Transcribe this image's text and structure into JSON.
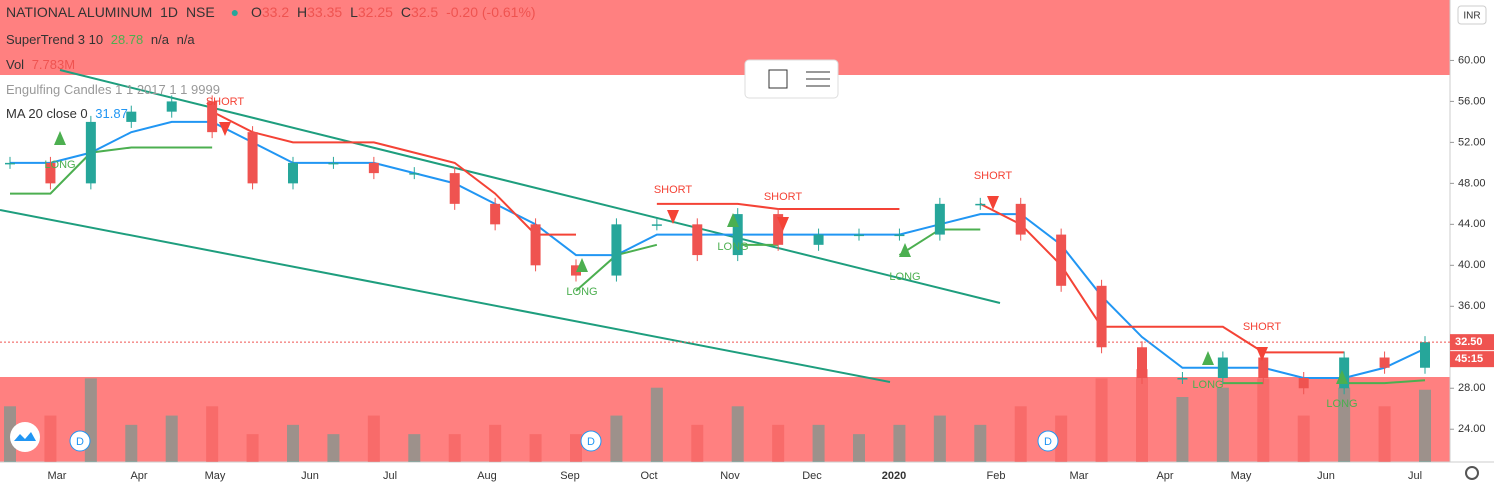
{
  "chart_data": {
    "type": "candlestick",
    "header": {
      "symbol": "NATIONAL ALUMINUM",
      "interval": "1D",
      "exchange": "NSE",
      "o_label": "O",
      "open": 33.2,
      "h_label": "H",
      "high": 33.35,
      "l_label": "L",
      "low": 32.25,
      "c_label": "C",
      "close": 32.5,
      "change": "-0.20 (-0.61%)"
    },
    "indicators": {
      "supertrend": "SuperTrend 3 10",
      "supertrend_value": 28.78,
      "supertrend_na1": "n/a",
      "supertrend_na2": "n/a",
      "vol": "Vol",
      "vol_value": "7.783M",
      "engulfing": "Engulfing Candles 1 1 2017 1 1 9999",
      "ma": "MA 20 close 0",
      "ma_value": 31.87
    },
    "currency": "INR",
    "last_price": {
      "value": 32.5,
      "label": "32.50"
    },
    "countdown": "45:15",
    "x_labels": [
      "Mar",
      "Apr",
      "May",
      "Jun",
      "Jul",
      "Aug",
      "Sep",
      "Oct",
      "Nov",
      "Dec",
      "2020",
      "Feb",
      "Mar",
      "Apr",
      "May",
      "Jun",
      "Jul"
    ],
    "values": [
      50,
      48,
      54,
      55,
      56,
      53,
      48,
      50,
      50,
      49,
      49,
      46,
      44,
      40,
      39,
      44,
      44,
      41,
      45,
      42,
      43,
      43,
      43,
      46,
      46,
      43,
      38,
      32,
      29,
      29,
      31,
      29,
      28,
      31,
      30,
      32.5
    ],
    "ma_values": [
      50,
      50,
      51,
      53,
      54,
      54,
      52,
      50,
      50,
      50,
      49,
      48,
      46,
      44,
      41,
      41,
      43,
      43,
      43,
      43,
      43,
      43,
      43,
      44,
      45,
      45,
      42,
      37,
      33,
      30,
      30,
      30,
      29,
      29,
      30,
      31.87
    ],
    "supertrend_up": [
      47,
      47,
      51,
      51.5,
      51.5,
      51.5,
      null,
      null,
      null,
      null,
      null,
      null,
      null,
      null,
      37.5,
      41,
      42,
      null,
      42,
      42,
      null,
      null,
      41,
      43.5,
      43.5,
      null,
      null,
      null,
      null,
      null,
      28.5,
      28.5,
      null,
      28.5,
      28.5,
      28.78
    ],
    "supertrend_down": [
      null,
      null,
      null,
      null,
      null,
      55,
      53,
      52,
      52,
      52,
      51,
      50,
      47,
      43,
      43,
      null,
      46,
      46,
      46,
      45.5,
      45.5,
      45.5,
      45.5,
      null,
      46,
      44,
      40,
      34,
      34,
      34,
      34,
      31.5,
      31.5,
      31.5,
      null,
      null
    ],
    "volume": [
      6,
      5,
      9,
      4,
      5,
      6,
      3,
      4,
      3,
      5,
      3,
      3,
      4,
      3,
      3,
      5,
      8,
      4,
      6,
      4,
      4,
      3,
      4,
      5,
      4,
      6,
      5,
      9,
      10,
      7,
      8,
      9,
      5,
      8,
      6,
      7.783
    ],
    "volume_ylim": [
      0,
      14
    ],
    "signals": [
      "LONG",
      "SHORT",
      "LONG",
      "SHORT",
      "LONG",
      "SHORT",
      "LONG",
      "SHORT",
      "LONG",
      "SHORT",
      "LONG"
    ],
    "dividend_marker": "D",
    "ylim": [
      20.8,
      65.9
    ],
    "yticks": [
      {
        "value": 24,
        "label": "24.00"
      },
      {
        "value": 28,
        "label": "28.00"
      },
      {
        "value": 36,
        "label": "36.00"
      },
      {
        "value": 40,
        "label": "40.00"
      },
      {
        "value": 44,
        "label": "44.00"
      },
      {
        "value": 48,
        "label": "48.00"
      },
      {
        "value": 52,
        "label": "52.00"
      },
      {
        "value": 56,
        "label": "56.00"
      },
      {
        "value": 60,
        "label": "60.00"
      }
    ],
    "colors": {
      "up": "#26a69a",
      "down": "#ef5350",
      "ma": "#2196f3",
      "st_up": "#4caf50",
      "st_down": "#f44336"
    }
  }
}
